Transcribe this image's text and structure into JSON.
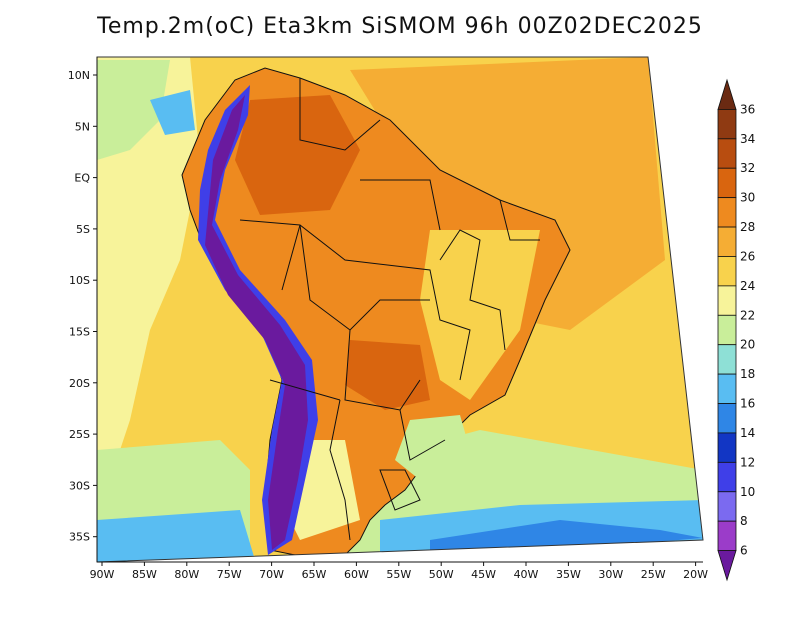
{
  "title": "Temp.2m(oC) Eta3km SiSMOM 96h 00Z02DEC2025",
  "axes": {
    "lat_labels": [
      "10N",
      "5N",
      "EQ",
      "5S",
      "10S",
      "15S",
      "20S",
      "25S",
      "30S",
      "35S"
    ],
    "lon_labels": [
      "90W",
      "85W",
      "80W",
      "75W",
      "70W",
      "65W",
      "60W",
      "55W",
      "50W",
      "45W",
      "40W",
      "35W",
      "30W",
      "25W",
      "20W"
    ]
  },
  "colorbar": {
    "unit": "oC",
    "tick_labels": [
      "36",
      "34",
      "32",
      "30",
      "28",
      "26",
      "24",
      "22",
      "20",
      "18",
      "16",
      "14",
      "12",
      "10",
      "8",
      "6"
    ],
    "bins": [
      {
        "color": "#6a2a12"
      },
      {
        "color": "#8f3a12"
      },
      {
        "color": "#b84d10"
      },
      {
        "color": "#d9650f"
      },
      {
        "color": "#ee8a1f"
      },
      {
        "color": "#f5ad34"
      },
      {
        "color": "#f8d24c"
      },
      {
        "color": "#f7f39a"
      },
      {
        "color": "#c9ee9a"
      },
      {
        "color": "#8ee0d6"
      },
      {
        "color": "#59bdf2"
      },
      {
        "color": "#2f86e6"
      },
      {
        "color": "#1236c4"
      },
      {
        "color": "#3f3fe8"
      },
      {
        "color": "#7b6af0"
      },
      {
        "color": "#9b3cc9"
      },
      {
        "color": "#6a1a9e"
      }
    ]
  },
  "map": {
    "palette": {
      "ocean_warm": "#f5ad34",
      "ocean_mid": "#f8d24c",
      "ocean_cool": "#f7f39a",
      "ocean_cold": "#c9ee9a",
      "cold_band": "#59bdf2",
      "very_cold": "#2f86e6",
      "land_hot": "#ee8a1f",
      "land_hotter": "#d9650f",
      "andes": "#6a1a9e",
      "andes_edge": "#3f3fe8",
      "border": "#111111"
    }
  }
}
